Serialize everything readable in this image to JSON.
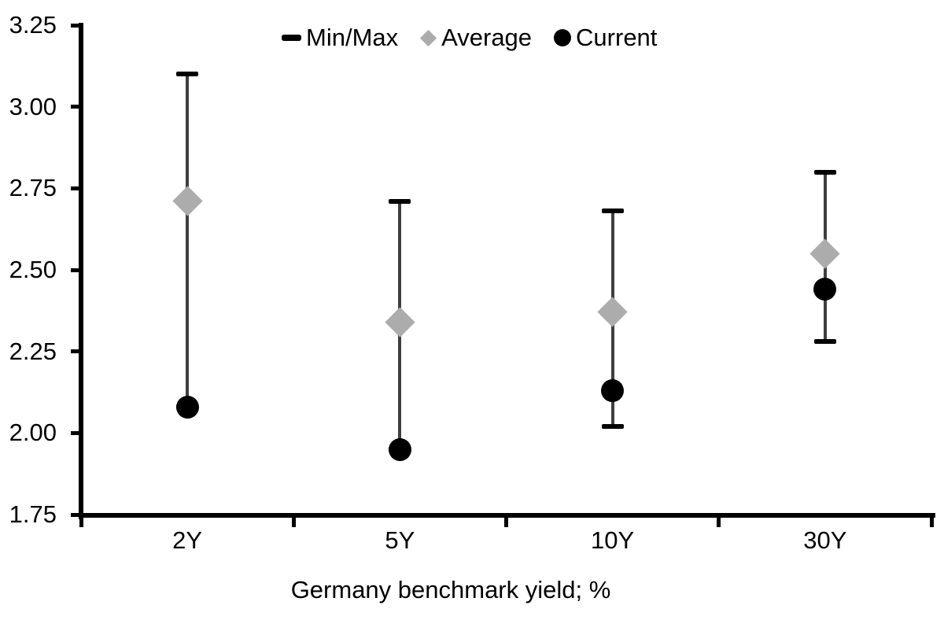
{
  "chart_data": {
    "type": "scatter",
    "subtype": "min-max-range-with-average-and-current-markers",
    "title": "",
    "xlabel": "Germany benchmark yield; %",
    "ylabel": "",
    "categories": [
      "2Y",
      "5Y",
      "10Y",
      "30Y"
    ],
    "ylim": [
      1.75,
      3.25
    ],
    "ytick_step": 0.25,
    "ytick_labels": [
      "3.25",
      "3.00",
      "2.75",
      "2.50",
      "2.25",
      "2.00",
      "1.75"
    ],
    "grid": false,
    "legend_position": "top-center-inside",
    "series": [
      {
        "name": "Min/Max",
        "marker": "dash",
        "max": [
          3.1,
          2.71,
          2.68,
          2.8
        ],
        "min": [
          2.08,
          1.95,
          2.02,
          2.28
        ]
      },
      {
        "name": "Average",
        "marker": "diamond",
        "values": [
          2.71,
          2.34,
          2.37,
          2.55
        ]
      },
      {
        "name": "Current",
        "marker": "circle",
        "values": [
          2.08,
          1.95,
          2.13,
          2.44
        ]
      }
    ]
  },
  "legend": {
    "items": [
      {
        "label": "Min/Max",
        "marker": "dash"
      },
      {
        "label": "Average",
        "marker": "diamond"
      },
      {
        "label": "Current",
        "marker": "circle"
      }
    ]
  },
  "colors": {
    "background": "#FFFFFF",
    "axis": "#000000",
    "text": "#000000",
    "whisker_line": "#3F3F3F",
    "minmax_cap": "#000000",
    "average_marker": "#ACACAC",
    "current_marker": "#000000"
  }
}
